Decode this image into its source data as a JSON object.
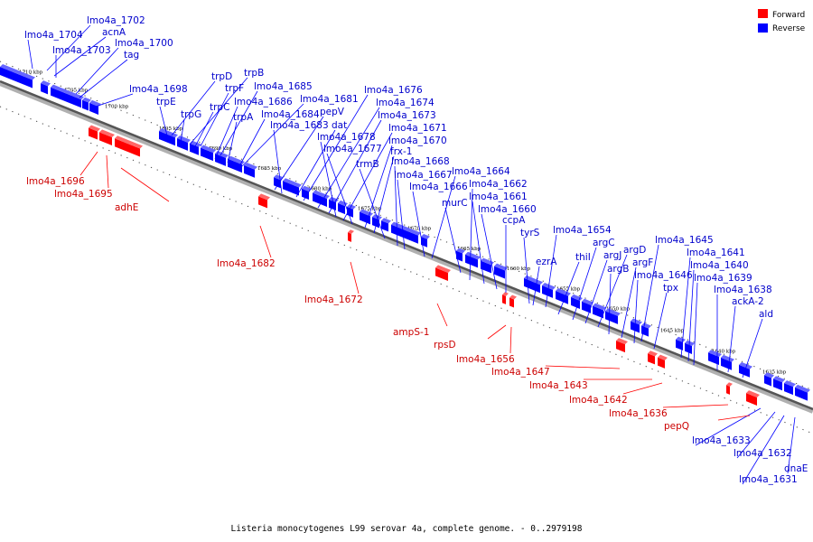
{
  "caption": "Listeria monocytogenes L99 serovar 4a, complete genome. - 0..2979198",
  "legend": [
    {
      "label": "Forward",
      "color": "#ff0000"
    },
    {
      "label": "Reverse",
      "color": "#0000ff"
    }
  ],
  "colors": {
    "forward": "#ff0000",
    "reverse": "#0000ff",
    "backbone": "#666666"
  },
  "scale_ticks": [
    {
      "label": "1710 kbp",
      "kbp": 1710
    },
    {
      "label": "1705 kbp",
      "kbp": 1705
    },
    {
      "label": "1700 kbp",
      "kbp": 1700
    },
    {
      "label": "1695 kbp",
      "kbp": 1695
    },
    {
      "label": "1690 kbp",
      "kbp": 1690
    },
    {
      "label": "1685 kbp",
      "kbp": 1685
    },
    {
      "label": "1680 kbp",
      "kbp": 1680
    },
    {
      "label": "1675 kbp",
      "kbp": 1675
    },
    {
      "label": "1670 kbp",
      "kbp": 1670
    },
    {
      "label": "1665 kbp",
      "kbp": 1665
    },
    {
      "label": "1660 kbp",
      "kbp": 1660
    },
    {
      "label": "1655 kbp",
      "kbp": 1655
    },
    {
      "label": "1650 kbp",
      "kbp": 1650
    },
    {
      "label": "1645 kbp",
      "kbp": 1645
    },
    {
      "label": "1640 kbp",
      "kbp": 1640
    },
    {
      "label": "1635 kbp",
      "kbp": 1635
    }
  ],
  "reverse_labels": [
    "lmo4a_1702",
    "lmo4a_1704",
    "acnA",
    "lmo4a_1703",
    "lmo4a_1700",
    "tag",
    "lmo4a_1698",
    "trpD",
    "trpB",
    "trpE",
    "trpF",
    "lmo4a_1685",
    "trpG",
    "trpC",
    "lmo4a_1686",
    "lmo4a_1681",
    "trpA",
    "lmo4a_1684",
    "pepV",
    "lmo4a_1683",
    "dat",
    "lmo4a_1676",
    "lmo4a_1674",
    "lmo4a_1673",
    "lmo4a_1678",
    "lmo4a_1671",
    "lmo4a_1677",
    "lmo4a_1670",
    "frx-1",
    "trmB",
    "lmo4a_1668",
    "lmo4a_1667",
    "lmo4a_1666",
    "lmo4a_1664",
    "murC",
    "lmo4a_1662",
    "lmo4a_1661",
    "lmo4a_1660",
    "ccpA",
    "tyrS",
    "lmo4a_1654",
    "thiI",
    "argC",
    "argJ",
    "ezrA",
    "argD",
    "argB",
    "argF",
    "lmo4a_1645",
    "lmo4a_1646",
    "tpx",
    "lmo4a_1641",
    "lmo4a_1640",
    "lmo4a_1639",
    "lmo4a_1638",
    "ackA-2",
    "ald",
    "lmo4a_1633",
    "lmo4a_1632",
    "dnaE",
    "lmo4a_1631"
  ],
  "forward_labels": [
    "lmo4a_1696",
    "lmo4a_1695",
    "adhE",
    "lmo4a_1682",
    "lmo4a_1672",
    "ampS-1",
    "rpsD",
    "lmo4a_1656",
    "lmo4a_1647",
    "lmo4a_1643",
    "lmo4a_1642",
    "lmo4a_1636",
    "pepQ"
  ]
}
